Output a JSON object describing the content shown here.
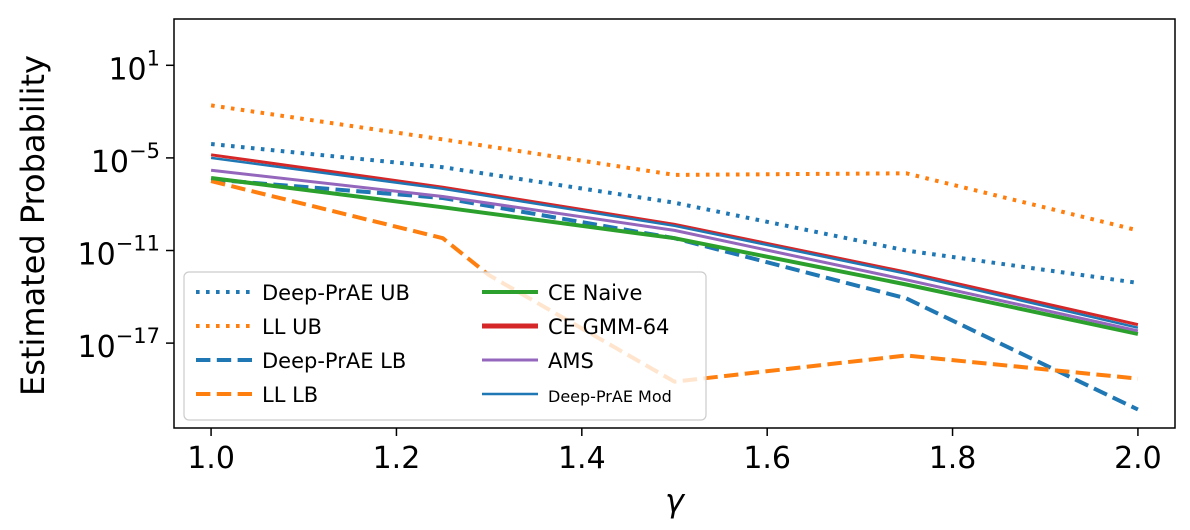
{
  "chart_data": {
    "type": "line",
    "title": "",
    "xlabel": "γ",
    "ylabel": "Estimated Probability",
    "x": [
      1.0,
      1.25,
      1.5,
      1.75,
      2.0
    ],
    "xlim": [
      0.96,
      2.04
    ],
    "ylim_log10": [
      -22.5,
      4.0
    ],
    "x_ticks": [
      1.0,
      1.2,
      1.4,
      1.6,
      1.8,
      2.0
    ],
    "x_tick_labels": [
      "1.0",
      "1.2",
      "1.4",
      "1.6",
      "1.8",
      "2.0"
    ],
    "y_ticks_log10": [
      1,
      -5,
      -11,
      -17
    ],
    "y_tick_labels": [
      {
        "base": "10",
        "exp": "1"
      },
      {
        "base": "10",
        "exp": "−5"
      },
      {
        "base": "10",
        "exp": "−11"
      },
      {
        "base": "10",
        "exp": "−17"
      }
    ],
    "series": [
      {
        "name": "Deep-PrAE UB",
        "color": "#1f77b4",
        "style": "dotted",
        "width": 4,
        "x": [
          1.0,
          1.25,
          1.5,
          1.75,
          2.0
        ],
        "log10_values": [
          -4.1,
          -5.6,
          -7.9,
          -11.0,
          -13.1
        ]
      },
      {
        "name": "LL UB",
        "color": "#ff7f0e",
        "style": "dotted",
        "width": 4,
        "x": [
          1.0,
          1.25,
          1.5,
          1.75,
          2.0
        ],
        "log10_values": [
          -1.6,
          -3.8,
          -6.1,
          -6.0,
          -9.7
        ]
      },
      {
        "name": "Deep-PrAE LB",
        "color": "#1f77b4",
        "style": "dashed",
        "width": 4,
        "x": [
          1.0,
          1.25,
          1.5,
          1.75,
          2.0
        ],
        "log10_values": [
          -6.4,
          -7.6,
          -10.2,
          -14.1,
          -21.3
        ]
      },
      {
        "name": "LL LB",
        "color": "#ff7f0e",
        "style": "dashed",
        "width": 4,
        "x": [
          1.0,
          1.25,
          1.3,
          1.5,
          1.75,
          2.0
        ],
        "log10_values": [
          -6.5,
          -10.2,
          -12.6,
          -19.5,
          -17.8,
          -19.3
        ]
      },
      {
        "name": "CE Naive",
        "color": "#2ca02c",
        "style": "solid",
        "width": 4,
        "x": [
          1.0,
          1.25,
          1.5,
          1.75,
          2.0
        ],
        "log10_values": [
          -6.3,
          -8.2,
          -10.2,
          -13.2,
          -16.4
        ]
      },
      {
        "name": "CE GMM-64",
        "color": "#d62728",
        "style": "solid",
        "width": 3,
        "x": [
          1.0,
          1.25,
          1.5,
          1.75,
          2.0
        ],
        "log10_values": [
          -4.8,
          -6.9,
          -9.3,
          -12.4,
          -15.8
        ]
      },
      {
        "name": "AMS",
        "color": "#9467bd",
        "style": "solid",
        "width": 3,
        "x": [
          1.0,
          1.25,
          1.5,
          1.75,
          2.0
        ],
        "log10_values": [
          -5.8,
          -7.5,
          -9.7,
          -12.9,
          -16.2
        ]
      },
      {
        "name": "Deep-PrAE Mod",
        "color": "#1f77b4",
        "style": "solid",
        "width": 2.5,
        "x": [
          1.0,
          1.25,
          1.5,
          1.75,
          2.0
        ],
        "log10_values": [
          -5.0,
          -7.0,
          -9.4,
          -12.5,
          -16.0
        ]
      }
    ],
    "legend": {
      "position": "lower-left",
      "columns": [
        [
          "Deep-PrAE UB",
          "LL UB",
          "Deep-PrAE LB",
          "LL LB"
        ],
        [
          "CE Naive",
          "CE GMM-64",
          "AMS",
          "Deep-PrAE Mod"
        ]
      ]
    }
  }
}
